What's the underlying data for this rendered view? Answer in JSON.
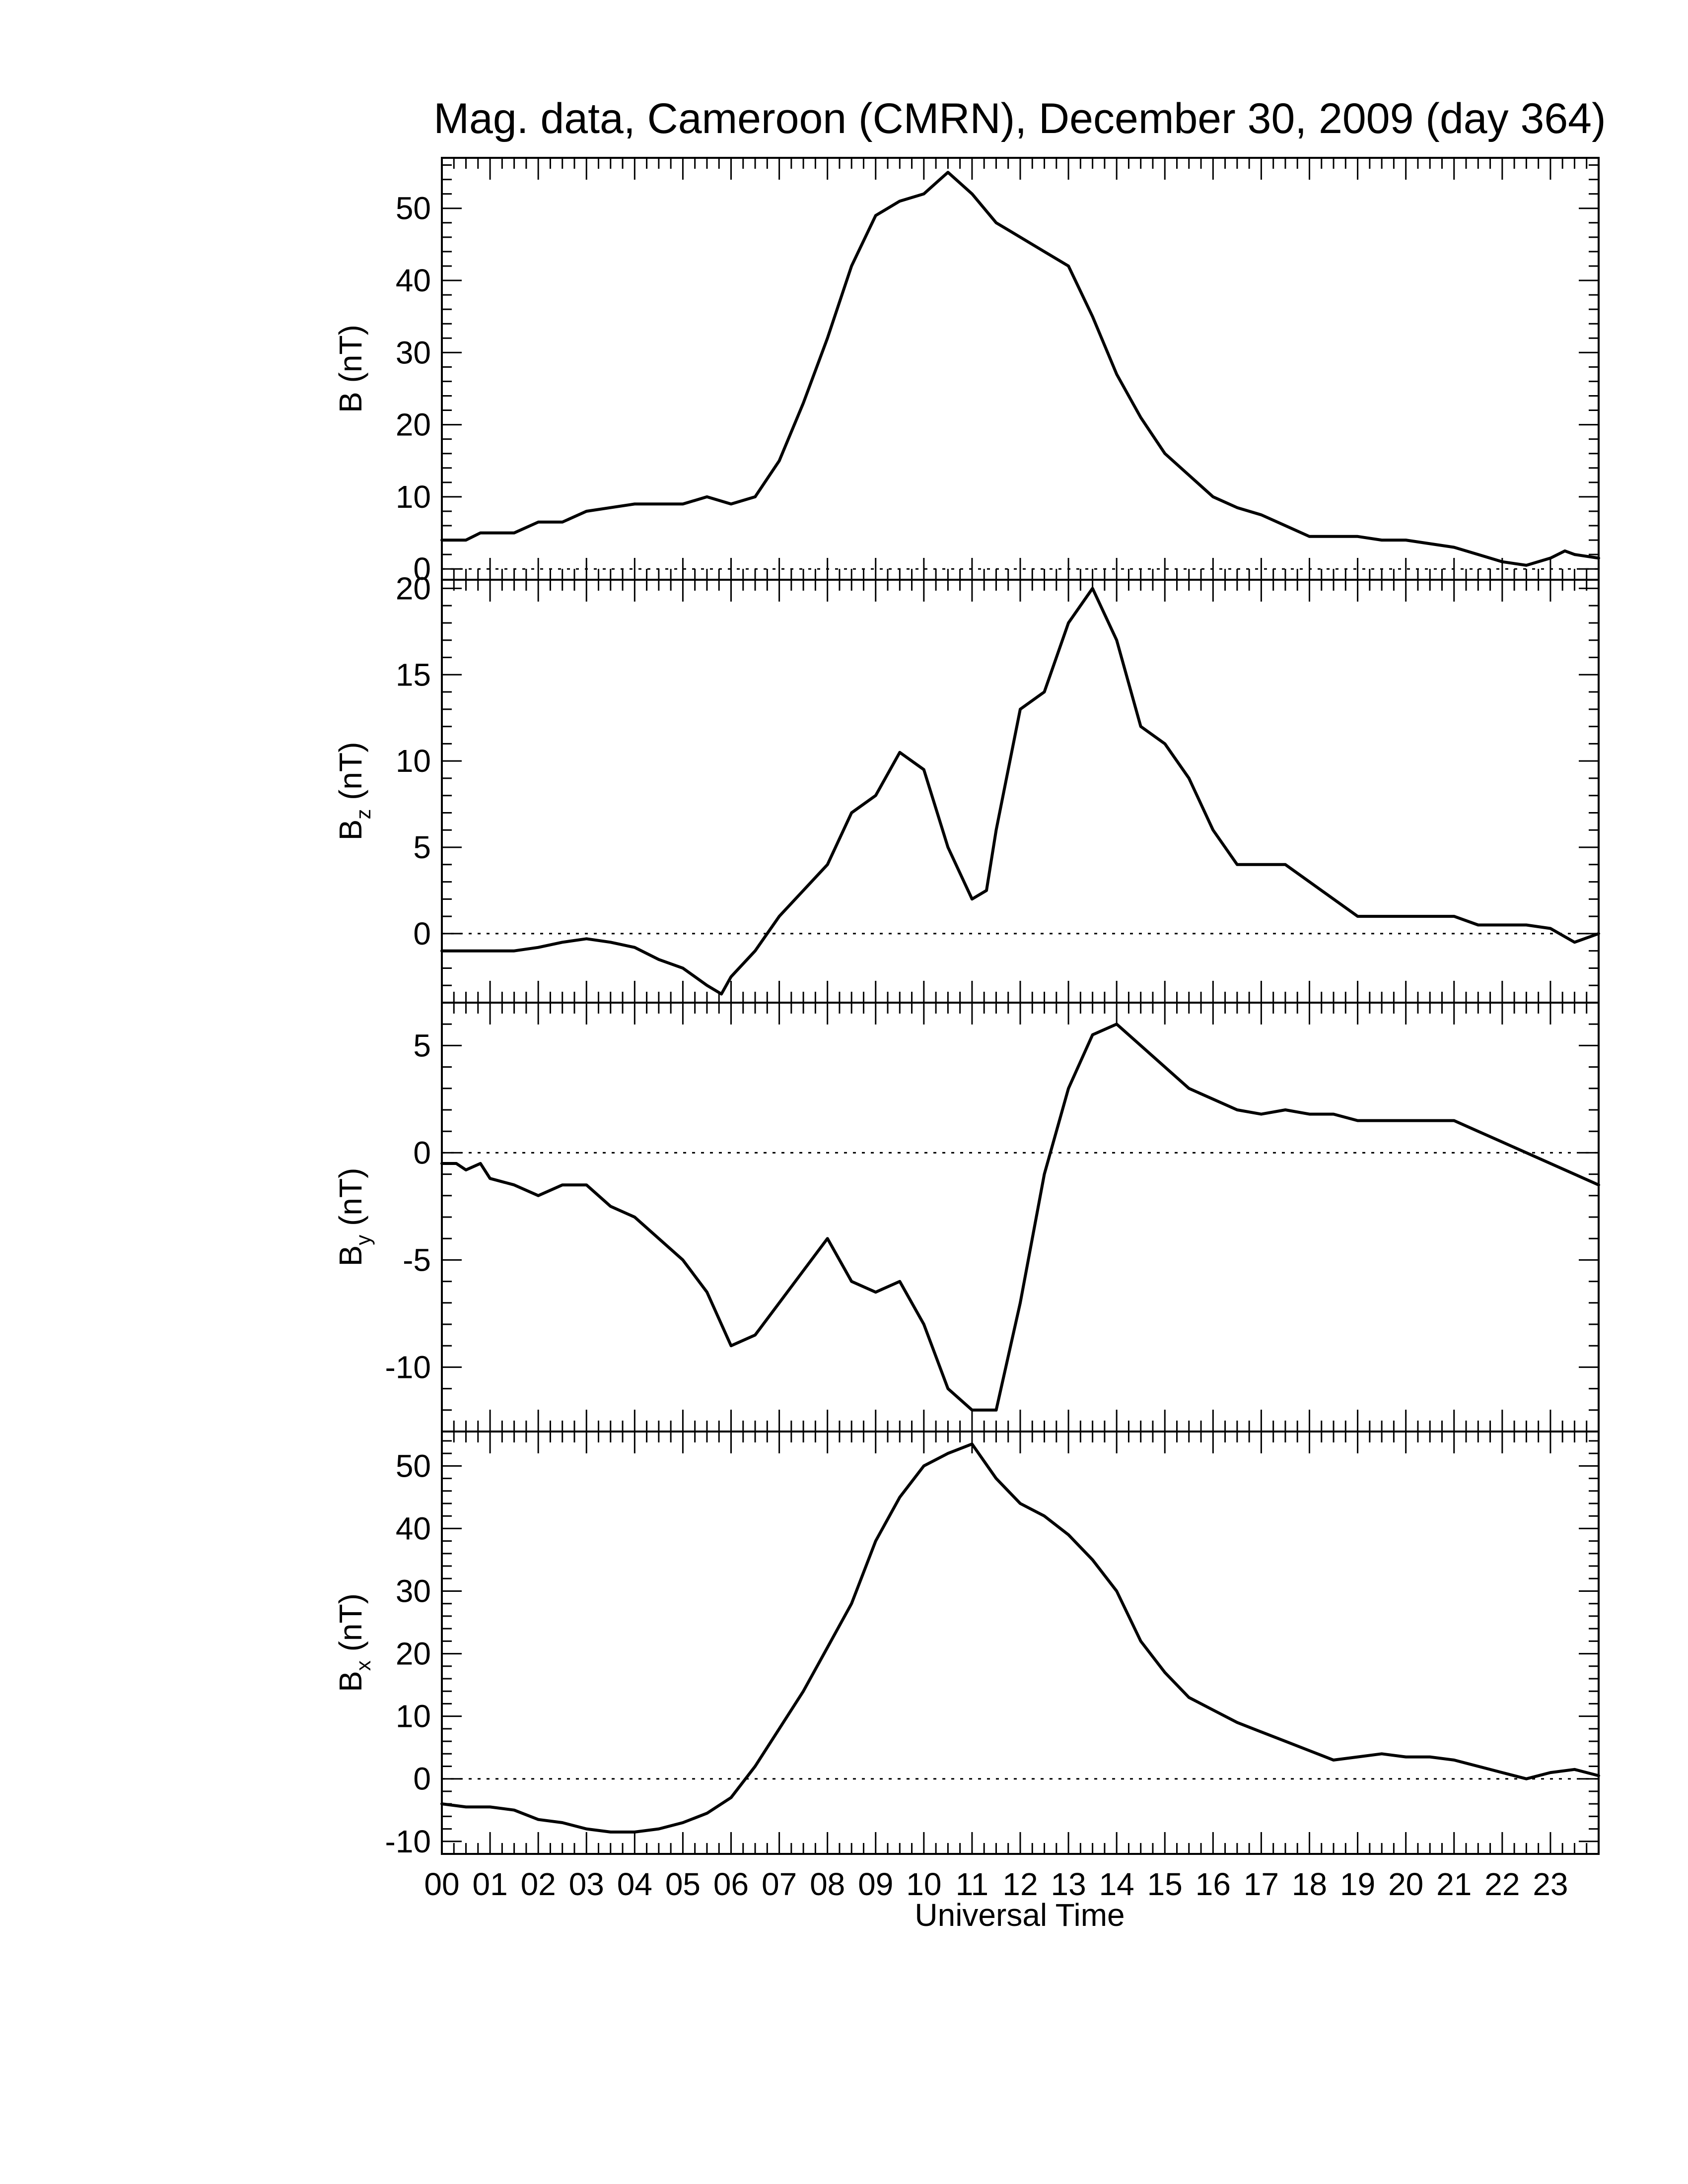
{
  "title": "Mag. data, Cameroon (CMRN), December 30, 2009 (day 364)",
  "xlabel": "Universal Time",
  "x_tick_labels": [
    "00",
    "01",
    "02",
    "03",
    "04",
    "05",
    "06",
    "07",
    "08",
    "09",
    "10",
    "11",
    "12",
    "13",
    "14",
    "15",
    "16",
    "17",
    "18",
    "19",
    "20",
    "21",
    "22",
    "23"
  ],
  "chart_data": [
    {
      "type": "line",
      "panel": "B",
      "ylabel": "B (nT)",
      "ylabel_main": "B",
      "ylabel_sub": "",
      "ylabel_unit": "(nT)",
      "ylim": [
        -1.5,
        57
      ],
      "yticks": [
        0,
        10,
        20,
        30,
        40,
        50
      ],
      "ytick_labels": [
        "0",
        "10",
        "20",
        "30",
        "40",
        "50"
      ],
      "xlim": [
        0,
        24
      ],
      "zero_line": true,
      "x": [
        0,
        0.5,
        0.8,
        1.5,
        2.0,
        2.5,
        3.0,
        3.5,
        4.0,
        5.0,
        5.5,
        6.0,
        6.5,
        7.0,
        7.5,
        8.0,
        8.5,
        9.0,
        9.5,
        10.0,
        10.5,
        11.0,
        11.5,
        12.0,
        12.5,
        13.0,
        13.5,
        14.0,
        14.5,
        15.0,
        15.5,
        16.0,
        16.5,
        17.0,
        17.5,
        18.0,
        18.5,
        19.0,
        19.5,
        20.0,
        20.5,
        21.0,
        21.5,
        22.0,
        22.5,
        23.0,
        23.3,
        23.5,
        24.0
      ],
      "values": [
        4,
        4,
        5,
        5,
        6.5,
        6.5,
        8,
        8.5,
        9,
        9,
        10,
        9,
        10,
        15,
        23,
        32,
        42,
        49,
        51,
        52,
        55,
        52,
        48,
        46,
        44,
        42,
        35,
        27,
        21,
        16,
        13,
        10,
        8.5,
        7.5,
        6,
        4.5,
        4.5,
        4.5,
        4,
        4,
        3.5,
        3,
        2,
        1,
        0.5,
        1.5,
        2.5,
        2,
        1.5
      ]
    },
    {
      "type": "line",
      "panel": "Bz",
      "ylabel": "Bz (nT)",
      "ylabel_main": "B",
      "ylabel_sub": "z",
      "ylabel_unit": "(nT)",
      "ylim": [
        -4,
        20.5
      ],
      "yticks": [
        0,
        5,
        10,
        15,
        20
      ],
      "ytick_labels": [
        "0",
        "5",
        "10",
        "15",
        "20"
      ],
      "xlim": [
        0,
        24
      ],
      "zero_line": true,
      "x": [
        0,
        0.5,
        1.0,
        1.5,
        2.0,
        2.5,
        3.0,
        3.5,
        4.0,
        4.5,
        5.0,
        5.5,
        5.8,
        6.0,
        6.5,
        7.0,
        7.5,
        8.0,
        8.5,
        9.0,
        9.5,
        10.0,
        10.5,
        11.0,
        11.3,
        11.5,
        12.0,
        12.5,
        13.0,
        13.5,
        14.0,
        14.5,
        15.0,
        15.5,
        16.0,
        16.5,
        17.0,
        17.5,
        18.0,
        18.5,
        19.0,
        19.5,
        20.0,
        20.5,
        21.0,
        21.5,
        22.0,
        22.5,
        23.0,
        23.5,
        24.0
      ],
      "values": [
        -1,
        -1,
        -1,
        -1,
        -0.8,
        -0.5,
        -0.3,
        -0.5,
        -0.8,
        -1.5,
        -2,
        -3,
        -3.5,
        -2.5,
        -1,
        1,
        2.5,
        4,
        7,
        8,
        10.5,
        9.5,
        5,
        2,
        2.5,
        6,
        13,
        14,
        18,
        20,
        17,
        12,
        11,
        9,
        6,
        4,
        4,
        4,
        3,
        2,
        1,
        1,
        1,
        1,
        1,
        0.5,
        0.5,
        0.5,
        0.3,
        -0.5,
        0
      ]
    },
    {
      "type": "line",
      "panel": "By",
      "ylabel": "By (nT)",
      "ylabel_main": "B",
      "ylabel_sub": "y",
      "ylabel_unit": "(nT)",
      "ylim": [
        -13,
        7
      ],
      "yticks": [
        -10,
        -5,
        0,
        5
      ],
      "ytick_labels": [
        "-10",
        "-5",
        "0",
        "5"
      ],
      "xlim": [
        0,
        24
      ],
      "zero_line": true,
      "x": [
        0,
        0.3,
        0.5,
        0.8,
        1.0,
        1.5,
        2.0,
        2.5,
        3.0,
        3.5,
        4.0,
        4.5,
        5.0,
        5.5,
        6.0,
        6.5,
        7.0,
        7.5,
        8.0,
        8.5,
        9.0,
        9.5,
        10.0,
        10.5,
        11.0,
        11.5,
        12.0,
        12.5,
        13.0,
        13.5,
        14.0,
        14.5,
        15.0,
        15.5,
        16.0,
        16.5,
        17.0,
        17.5,
        18.0,
        18.5,
        19.0,
        19.5,
        20.0,
        20.5,
        21.0,
        21.5,
        22.0,
        22.5,
        23.0,
        23.5,
        24.0
      ],
      "values": [
        -0.5,
        -0.5,
        -0.8,
        -0.5,
        -1.2,
        -1.5,
        -2,
        -1.5,
        -1.5,
        -2.5,
        -3,
        -4,
        -5,
        -6.5,
        -9,
        -8.5,
        -7,
        -5.5,
        -4,
        -6,
        -6.5,
        -6,
        -8,
        -11,
        -12,
        -12,
        -7,
        -1,
        3,
        5.5,
        6,
        5,
        4,
        3,
        2.5,
        2,
        1.8,
        2,
        1.8,
        1.8,
        1.5,
        1.5,
        1.5,
        1.5,
        1.5,
        1,
        0.5,
        0,
        -0.5,
        -1,
        -1.5
      ]
    },
    {
      "type": "line",
      "panel": "Bx",
      "ylabel": "Bx (nT)",
      "ylabel_main": "B",
      "ylabel_sub": "x",
      "ylabel_unit": "(nT)",
      "ylim": [
        -12,
        55.5
      ],
      "yticks": [
        -10,
        0,
        10,
        20,
        30,
        40,
        50
      ],
      "ytick_labels": [
        "-10",
        "0",
        "10",
        "20",
        "30",
        "40",
        "50"
      ],
      "xlim": [
        0,
        24
      ],
      "zero_line": true,
      "x": [
        0,
        0.5,
        1.0,
        1.5,
        2.0,
        2.5,
        3.0,
        3.5,
        4.0,
        4.5,
        5.0,
        5.5,
        6.0,
        6.5,
        7.0,
        7.5,
        8.0,
        8.5,
        9.0,
        9.5,
        10.0,
        10.5,
        11.0,
        11.5,
        12.0,
        12.5,
        13.0,
        13.5,
        14.0,
        14.5,
        15.0,
        15.5,
        16.0,
        16.5,
        17.0,
        17.5,
        18.0,
        18.5,
        19.0,
        19.5,
        20.0,
        20.5,
        21.0,
        21.5,
        22.0,
        22.5,
        23.0,
        23.5,
        24.0
      ],
      "values": [
        -4,
        -4.5,
        -4.5,
        -5,
        -6.5,
        -7,
        -8,
        -8.5,
        -8.5,
        -8,
        -7,
        -5.5,
        -3,
        2,
        8,
        14,
        21,
        28,
        38,
        45,
        50,
        52,
        53.5,
        48,
        44,
        42,
        39,
        35,
        30,
        22,
        17,
        13,
        11,
        9,
        7.5,
        6,
        4.5,
        3,
        3.5,
        4,
        3.5,
        3.5,
        3,
        2,
        1,
        0,
        1,
        1.5,
        0.5
      ]
    }
  ]
}
